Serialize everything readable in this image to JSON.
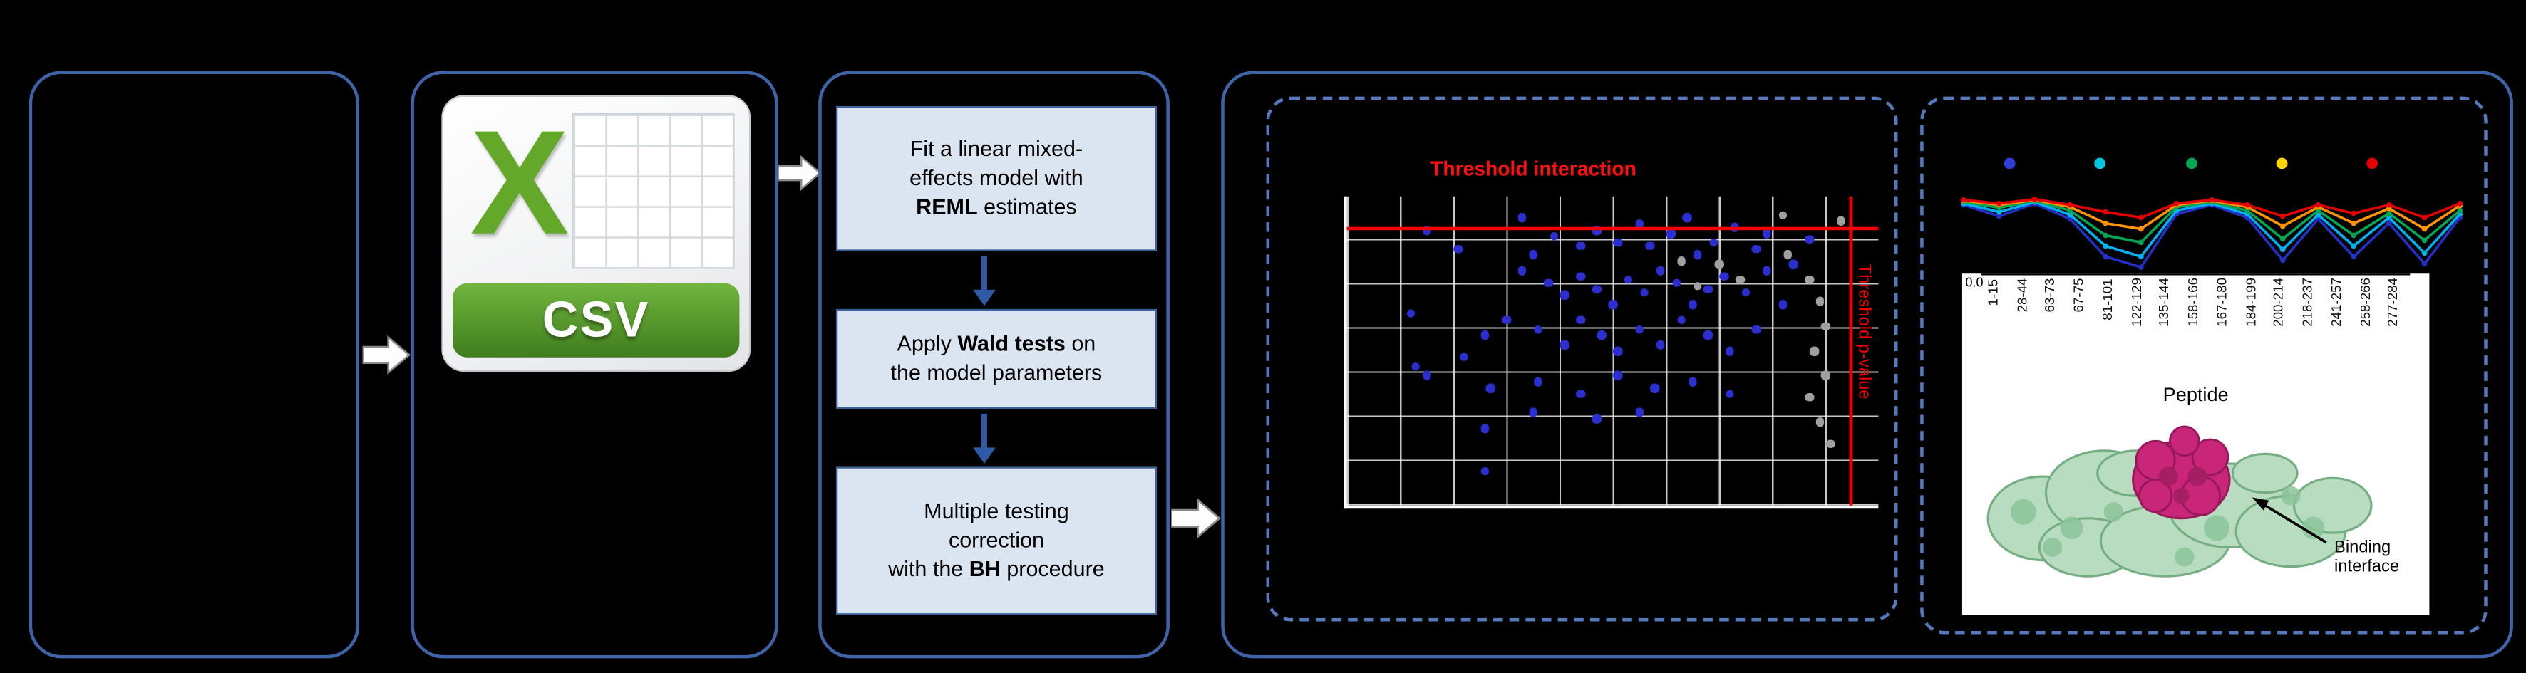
{
  "flow": {
    "csv_icon": {
      "letter": "X",
      "label": "CSV"
    },
    "steps": [
      {
        "l1": "Fit a linear mixed-",
        "l2": "effects model with",
        "bold": "REML",
        "after": " estimates"
      },
      {
        "pre": "Apply ",
        "bold": "Wald tests",
        "post": " on",
        "l2": "the model parameters"
      },
      {
        "l1": "Multiple testing",
        "l2": "correction",
        "pre": "with the ",
        "bold": "BH",
        "post": " procedure"
      }
    ]
  },
  "chart_data": [
    {
      "type": "scatter",
      "h_label": "Threshold interaction",
      "v_label": "Threshold p-value",
      "h_line_y": 0.1,
      "v_line_x": 0.945,
      "grid_cols": 10,
      "grid_rows": 7,
      "axis_color": "#ffffff",
      "threshold_color": "#f20000",
      "series": [
        {
          "color": "#2b2fd0",
          "points": [
            [
              0.15,
              0.11
            ],
            [
              0.21,
              0.17
            ],
            [
              0.33,
              0.07
            ],
            [
              0.35,
              0.19
            ],
            [
              0.39,
              0.13
            ],
            [
              0.44,
              0.16
            ],
            [
              0.47,
              0.11
            ],
            [
              0.51,
              0.15
            ],
            [
              0.55,
              0.09
            ],
            [
              0.57,
              0.16
            ],
            [
              0.61,
              0.12
            ],
            [
              0.64,
              0.07
            ],
            [
              0.66,
              0.19
            ],
            [
              0.69,
              0.15
            ],
            [
              0.73,
              0.1
            ],
            [
              0.77,
              0.17
            ],
            [
              0.79,
              0.12
            ],
            [
              0.33,
              0.24
            ],
            [
              0.38,
              0.28
            ],
            [
              0.41,
              0.32
            ],
            [
              0.44,
              0.26
            ],
            [
              0.47,
              0.3
            ],
            [
              0.5,
              0.35
            ],
            [
              0.53,
              0.27
            ],
            [
              0.56,
              0.31
            ],
            [
              0.59,
              0.24
            ],
            [
              0.62,
              0.28
            ],
            [
              0.65,
              0.35
            ],
            [
              0.68,
              0.3
            ],
            [
              0.71,
              0.26
            ],
            [
              0.75,
              0.31
            ],
            [
              0.79,
              0.24
            ],
            [
              0.12,
              0.38
            ],
            [
              0.26,
              0.45
            ],
            [
              0.3,
              0.4
            ],
            [
              0.36,
              0.43
            ],
            [
              0.41,
              0.48
            ],
            [
              0.44,
              0.4
            ],
            [
              0.48,
              0.45
            ],
            [
              0.51,
              0.5
            ],
            [
              0.55,
              0.43
            ],
            [
              0.59,
              0.48
            ],
            [
              0.63,
              0.4
            ],
            [
              0.68,
              0.45
            ],
            [
              0.72,
              0.5
            ],
            [
              0.77,
              0.43
            ],
            [
              0.15,
              0.58
            ],
            [
              0.27,
              0.62
            ],
            [
              0.36,
              0.6
            ],
            [
              0.44,
              0.64
            ],
            [
              0.51,
              0.58
            ],
            [
              0.58,
              0.62
            ],
            [
              0.65,
              0.6
            ],
            [
              0.72,
              0.64
            ],
            [
              0.26,
              0.75
            ],
            [
              0.47,
              0.72
            ],
            [
              0.13,
              0.55
            ],
            [
              0.22,
              0.52
            ],
            [
              0.87,
              0.14
            ],
            [
              0.84,
              0.22
            ],
            [
              0.82,
              0.35
            ],
            [
              0.26,
              0.89
            ],
            [
              0.55,
              0.7
            ],
            [
              0.35,
              0.7
            ]
          ]
        },
        {
          "color": "#a0a0a0",
          "points": [
            [
              0.82,
              0.06
            ],
            [
              0.93,
              0.08
            ],
            [
              0.7,
              0.22
            ],
            [
              0.74,
              0.27
            ],
            [
              0.83,
              0.19
            ],
            [
              0.87,
              0.27
            ],
            [
              0.89,
              0.34
            ],
            [
              0.9,
              0.42
            ],
            [
              0.88,
              0.5
            ],
            [
              0.9,
              0.58
            ],
            [
              0.87,
              0.65
            ],
            [
              0.89,
              0.73
            ],
            [
              0.91,
              0.8
            ],
            [
              0.63,
              0.21
            ],
            [
              0.66,
              0.29
            ]
          ]
        }
      ]
    },
    {
      "type": "line",
      "categories": [
        "1-15",
        "28-44",
        "63-73",
        "67-75",
        "81-101",
        "122-129",
        "135-144",
        "158-166",
        "167-180",
        "184-199",
        "200-214",
        "218-237",
        "241-257",
        "258-266",
        "277-284"
      ],
      "xlabel": "Peptide",
      "y_tick": "0.0",
      "legend_dot_colors": [
        "#2f3ed8",
        "#00c6e0",
        "#00a651",
        "#ffd400",
        "#e80000"
      ],
      "series": [
        {
          "color": "#2230c8",
          "values": [
            0.12,
            0.28,
            0.1,
            0.32,
            0.85,
            1.0,
            0.25,
            0.12,
            0.3,
            0.9,
            0.32,
            0.85,
            0.38,
            0.95,
            0.3
          ]
        },
        {
          "color": "#00b0f0",
          "values": [
            0.1,
            0.22,
            0.08,
            0.26,
            0.7,
            0.85,
            0.2,
            0.1,
            0.25,
            0.75,
            0.26,
            0.7,
            0.3,
            0.8,
            0.25
          ]
        },
        {
          "color": "#00a651",
          "values": [
            0.08,
            0.16,
            0.06,
            0.2,
            0.55,
            0.65,
            0.15,
            0.08,
            0.2,
            0.6,
            0.2,
            0.55,
            0.24,
            0.62,
            0.2
          ]
        },
        {
          "color": "#ff9300",
          "values": [
            0.06,
            0.12,
            0.05,
            0.15,
            0.38,
            0.46,
            0.12,
            0.06,
            0.15,
            0.42,
            0.15,
            0.38,
            0.17,
            0.46,
            0.13
          ]
        },
        {
          "color": "#e60000",
          "values": [
            0.05,
            0.1,
            0.04,
            0.12,
            0.22,
            0.3,
            0.1,
            0.05,
            0.12,
            0.28,
            0.12,
            0.24,
            0.12,
            0.3,
            0.1
          ]
        }
      ],
      "annotation": "Binding interface"
    }
  ]
}
